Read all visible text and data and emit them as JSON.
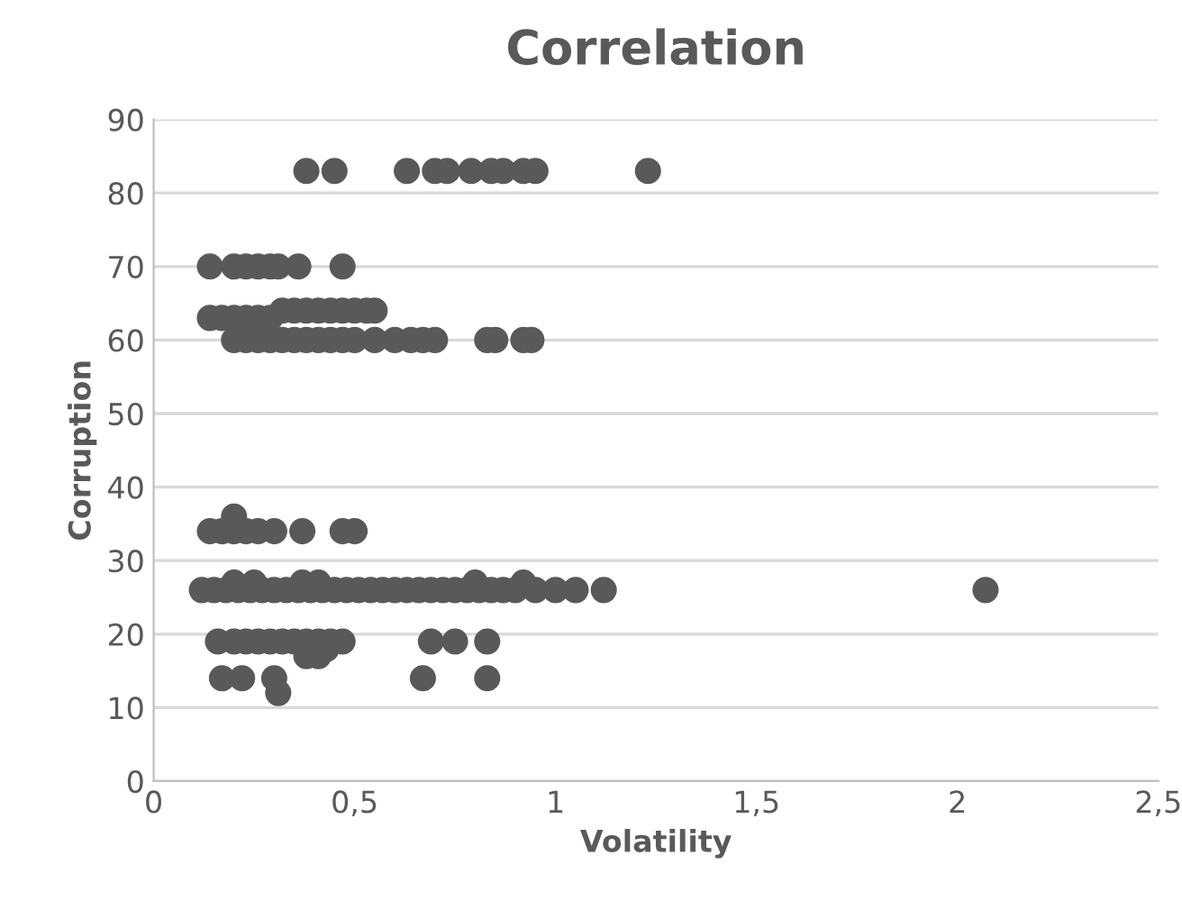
{
  "chart_data": {
    "type": "scatter",
    "title": "Correlation",
    "xlabel": "Volatility",
    "ylabel": "Corruption",
    "x": [
      0.38,
      0.45,
      0.63,
      0.7,
      0.73,
      0.79,
      0.84,
      0.87,
      0.92,
      0.95,
      1.23,
      0.14,
      0.2,
      0.23,
      0.26,
      0.29,
      0.31,
      0.36,
      0.47,
      0.14,
      0.17,
      0.2,
      0.23,
      0.26,
      0.29,
      0.32,
      0.35,
      0.38,
      0.41,
      0.44,
      0.47,
      0.5,
      0.53,
      0.55,
      0.2,
      0.23,
      0.26,
      0.29,
      0.32,
      0.35,
      0.38,
      0.41,
      0.44,
      0.47,
      0.5,
      0.55,
      0.6,
      0.64,
      0.67,
      0.7,
      0.83,
      0.85,
      0.92,
      0.94,
      0.14,
      0.17,
      0.2,
      0.23,
      0.26,
      0.3,
      0.37,
      0.47,
      0.5,
      0.2,
      0.2,
      0.25,
      0.37,
      0.41,
      0.8,
      0.92,
      0.12,
      0.15,
      0.18,
      0.21,
      0.24,
      0.27,
      0.3,
      0.33,
      0.36,
      0.39,
      0.42,
      0.45,
      0.48,
      0.51,
      0.54,
      0.57,
      0.6,
      0.63,
      0.66,
      0.69,
      0.72,
      0.75,
      0.78,
      0.81,
      0.84,
      0.87,
      0.9,
      0.95,
      1.0,
      1.05,
      1.12,
      2.07,
      0.16,
      0.2,
      0.23,
      0.26,
      0.29,
      0.32,
      0.35,
      0.38,
      0.41,
      0.44,
      0.47,
      0.69,
      0.75,
      0.83,
      0.38,
      0.41,
      0.43,
      0.17,
      0.22,
      0.3,
      0.67,
      0.83,
      0.31
    ],
    "series": [
      {
        "color": "#595959",
        "values": [
          83,
          83,
          83,
          83,
          83,
          83,
          83,
          83,
          83,
          83,
          83,
          70,
          70,
          70,
          70,
          70,
          70,
          70,
          70,
          63,
          63,
          63,
          63,
          63,
          63,
          64,
          64,
          64,
          64,
          64,
          64,
          64,
          64,
          64,
          60,
          60,
          60,
          60,
          60,
          60,
          60,
          60,
          60,
          60,
          60,
          60,
          60,
          60,
          60,
          60,
          60,
          60,
          60,
          60,
          34,
          34,
          34,
          34,
          34,
          34,
          34,
          34,
          34,
          36,
          27,
          27,
          27,
          27,
          27,
          27,
          26,
          26,
          26,
          26,
          26,
          26,
          26,
          26,
          26,
          26,
          26,
          26,
          26,
          26,
          26,
          26,
          26,
          26,
          26,
          26,
          26,
          26,
          26,
          26,
          26,
          26,
          26,
          26,
          26,
          26,
          26,
          26,
          19,
          19,
          19,
          19,
          19,
          19,
          19,
          19,
          19,
          19,
          19,
          19,
          19,
          19,
          17,
          17,
          18,
          14,
          14,
          14,
          14,
          14,
          12
        ]
      }
    ],
    "xlim": [
      0,
      2.5
    ],
    "xticks": [
      0,
      {
        "value": 0.5,
        "label": "0,5"
      },
      1,
      {
        "value": 1.5,
        "label": "1,5"
      },
      2,
      {
        "value": 2.5,
        "label": "2,5"
      }
    ],
    "ylim": [
      0,
      90
    ],
    "yticks": [
      0,
      10,
      20,
      30,
      40,
      50,
      60,
      70,
      80,
      90
    ],
    "grid": "y",
    "marker": "circle",
    "legend": false
  }
}
